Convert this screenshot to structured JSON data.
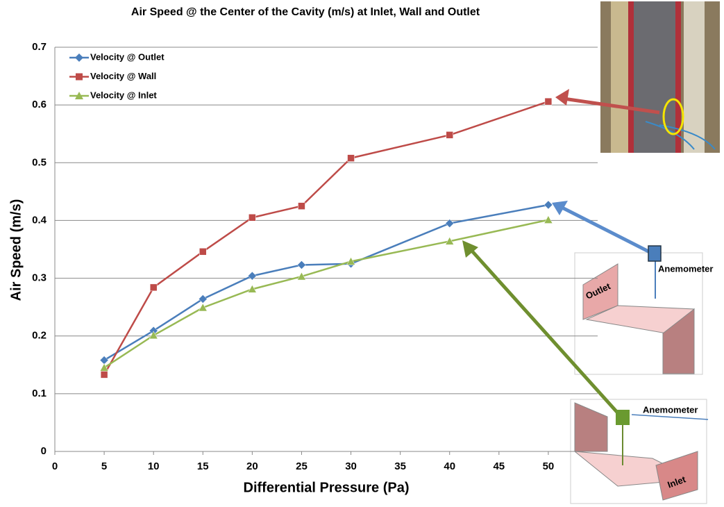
{
  "chart_data": {
    "type": "line",
    "title": "Air Speed @ the Center of the Cavity (m/s) at Inlet, Wall and Outlet",
    "x_label": "Differential Pressure (Pa)",
    "y_label": "Air Speed (m/s)",
    "x": [
      5,
      10,
      15,
      20,
      25,
      30,
      40,
      50
    ],
    "series": [
      {
        "name": "Velocity @ Outlet",
        "color": "#4a7ebb",
        "marker": "diamond",
        "values": [
          0.158,
          0.209,
          0.264,
          0.304,
          0.323,
          0.325,
          0.395,
          0.427
        ]
      },
      {
        "name": "Velocity @ Wall",
        "color": "#be4b48",
        "marker": "square",
        "values": [
          0.133,
          0.284,
          0.346,
          0.405,
          0.425,
          0.508,
          0.548,
          0.606
        ]
      },
      {
        "name": "Velocity @ Inlet",
        "color": "#98b954",
        "marker": "triangle",
        "values": [
          0.145,
          0.201,
          0.249,
          0.281,
          0.303,
          0.329,
          0.364,
          0.401
        ]
      }
    ],
    "xlim": [
      0,
      55
    ],
    "xticks": [
      0,
      5,
      10,
      15,
      20,
      25,
      30,
      35,
      40,
      45,
      50
    ],
    "ylim": [
      0,
      0.7
    ],
    "yticks": [
      0,
      0.1,
      0.2,
      0.3,
      0.4,
      0.5,
      0.6,
      0.7
    ],
    "grid": true,
    "legend": "upper left",
    "annotations": {
      "outlet_diagram": [
        "Outlet",
        "Anemometer"
      ],
      "inlet_diagram": [
        "Anemometer",
        "Inlet"
      ]
    }
  }
}
